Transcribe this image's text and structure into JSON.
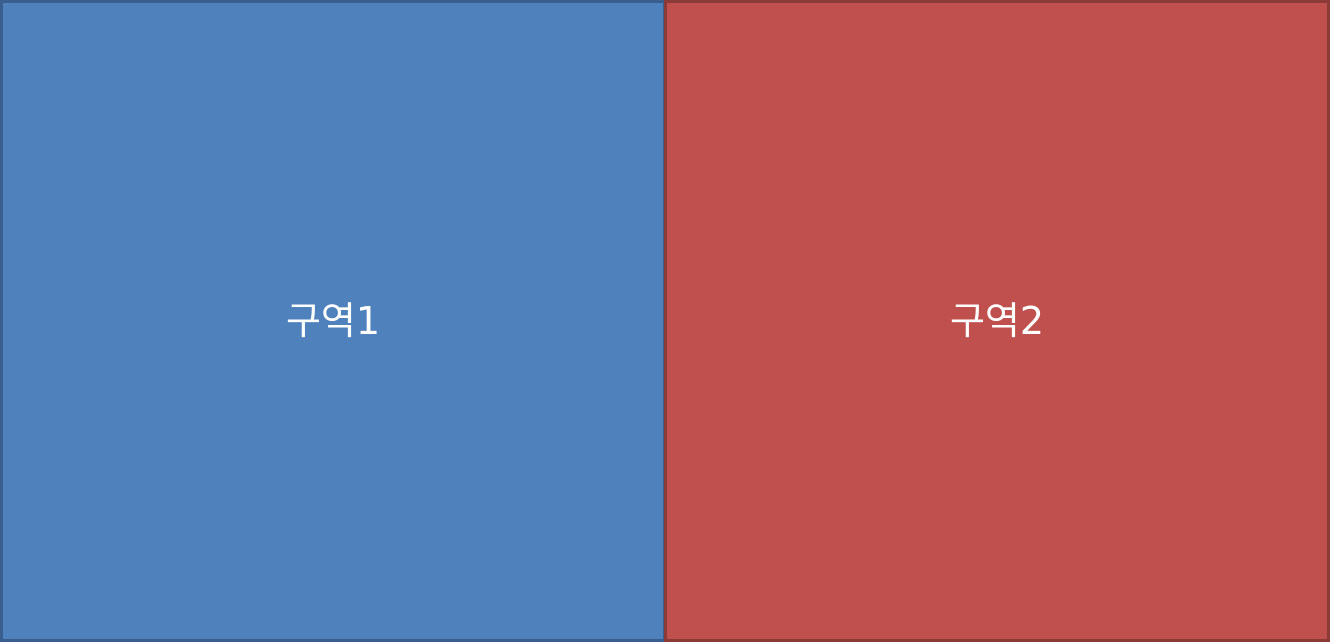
{
  "zones": [
    {
      "label": "구역1",
      "fill": "#4F81BD",
      "border": "#3A5F8E"
    },
    {
      "label": "구역2",
      "fill": "#C0504D",
      "border": "#8C3A38"
    }
  ]
}
